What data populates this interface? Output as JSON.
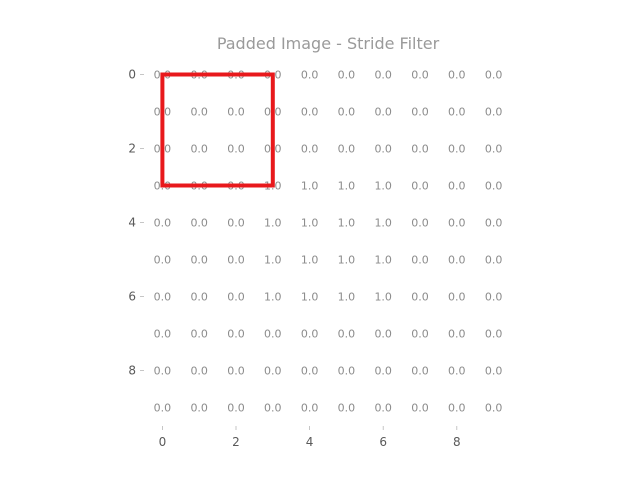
{
  "chart_data": {
    "type": "heatmap",
    "title": "Padded Image - Stride Filter",
    "xlabel": "",
    "ylabel": "",
    "rows": 10,
    "cols": 10,
    "xlim": [
      -0.5,
      9.5
    ],
    "ylim": [
      9.5,
      -0.5
    ],
    "x_ticks": [
      0,
      2,
      4,
      6,
      8
    ],
    "y_ticks": [
      0,
      2,
      4,
      6,
      8
    ],
    "value_format": "0.0",
    "values": [
      [
        0.0,
        0.0,
        0.0,
        0.0,
        0.0,
        0.0,
        0.0,
        0.0,
        0.0,
        0.0
      ],
      [
        0.0,
        0.0,
        0.0,
        0.0,
        0.0,
        0.0,
        0.0,
        0.0,
        0.0,
        0.0
      ],
      [
        0.0,
        0.0,
        0.0,
        0.0,
        0.0,
        0.0,
        0.0,
        0.0,
        0.0,
        0.0
      ],
      [
        0.0,
        0.0,
        0.0,
        1.0,
        1.0,
        1.0,
        1.0,
        0.0,
        0.0,
        0.0
      ],
      [
        0.0,
        0.0,
        0.0,
        1.0,
        1.0,
        1.0,
        1.0,
        0.0,
        0.0,
        0.0
      ],
      [
        0.0,
        0.0,
        0.0,
        1.0,
        1.0,
        1.0,
        1.0,
        0.0,
        0.0,
        0.0
      ],
      [
        0.0,
        0.0,
        0.0,
        1.0,
        1.0,
        1.0,
        1.0,
        0.0,
        0.0,
        0.0
      ],
      [
        0.0,
        0.0,
        0.0,
        0.0,
        0.0,
        0.0,
        0.0,
        0.0,
        0.0,
        0.0
      ],
      [
        0.0,
        0.0,
        0.0,
        0.0,
        0.0,
        0.0,
        0.0,
        0.0,
        0.0,
        0.0
      ],
      [
        0.0,
        0.0,
        0.0,
        0.0,
        0.0,
        0.0,
        0.0,
        0.0,
        0.0,
        0.0
      ]
    ],
    "colormap": "white",
    "grid": false,
    "filter_window": {
      "x_range": [
        0,
        3
      ],
      "y_range": [
        0,
        3
      ],
      "color": "#e8191c"
    }
  }
}
